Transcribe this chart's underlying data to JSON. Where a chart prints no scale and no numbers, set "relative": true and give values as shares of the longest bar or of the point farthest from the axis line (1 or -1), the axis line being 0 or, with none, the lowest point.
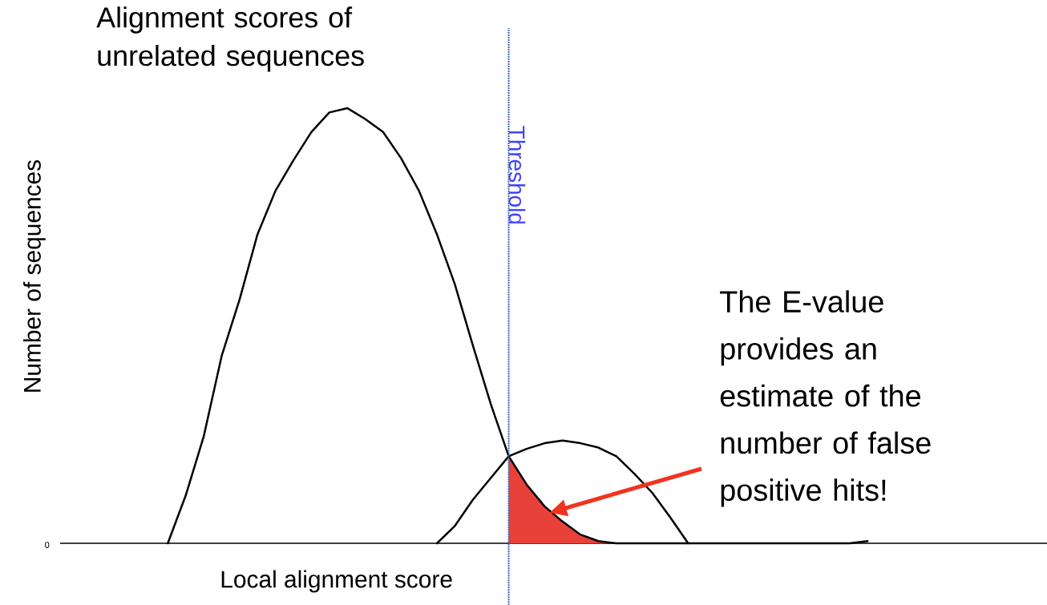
{
  "chart_data": {
    "type": "line",
    "relative": true,
    "xlabel": "Local alignment score",
    "ylabel": "Number of sequences",
    "categories": [
      null,
      null,
      null,
      null,
      null,
      null,
      null,
      null,
      null,
      null,
      null,
      null,
      null,
      null,
      null,
      null,
      null,
      null,
      null,
      null,
      null,
      null,
      null,
      null,
      null,
      null,
      null,
      null,
      null,
      null,
      null,
      null,
      null,
      null,
      null,
      null,
      null,
      null,
      null,
      null,
      null,
      null,
      null,
      null,
      null,
      null,
      null,
      null,
      null,
      null,
      null,
      null,
      null,
      null,
      null,
      null
    ],
    "series": [
      {
        "type": "area",
        "color": "#e8413a",
        "values": [
          null,
          null,
          null,
          null,
          null,
          null,
          null,
          null,
          null,
          null,
          null,
          null,
          null,
          null,
          null,
          null,
          null,
          null,
          null,
          null,
          null,
          null,
          null,
          null,
          null,
          0.2,
          0.135,
          0.085,
          0.05,
          0.02,
          0.005,
          0,
          null,
          null,
          null,
          null,
          null,
          null,
          null,
          null,
          null,
          null,
          null,
          null,
          null,
          null,
          null,
          null,
          null,
          null,
          null,
          null,
          null,
          null,
          null,
          null
        ]
      },
      {
        "color": "#000000",
        "values": [
          null,
          null,
          null,
          null,
          null,
          null,
          0,
          0.11,
          0.245,
          0.43,
          0.56,
          0.71,
          0.81,
          0.88,
          0.945,
          0.99,
          1,
          0.975,
          0.945,
          0.885,
          0.81,
          0.71,
          0.595,
          0.455,
          0.32,
          0.2,
          0.135,
          0.085,
          0.05,
          0.02,
          0.005,
          0,
          0,
          0,
          0,
          0,
          0,
          0,
          0,
          0,
          0,
          0,
          0,
          0,
          0,
          0.005,
          null,
          null,
          null,
          null,
          null,
          null,
          null,
          null,
          null,
          null
        ]
      },
      {
        "color": "#000000",
        "values": [
          null,
          null,
          null,
          null,
          null,
          null,
          null,
          null,
          null,
          null,
          null,
          null,
          null,
          null,
          null,
          null,
          null,
          null,
          null,
          null,
          null,
          0,
          0.04,
          0.1,
          0.15,
          0.2,
          0.217,
          0.23,
          0.236,
          0.23,
          0.22,
          0.2,
          0.16,
          0.116,
          0.06,
          0,
          null,
          null,
          null,
          null,
          null,
          null,
          null,
          null,
          null,
          null,
          null,
          null,
          null,
          null,
          null,
          null,
          null,
          null,
          null,
          null
        ]
      }
    ],
    "annotations": [
      "Alignment scores of unrelated sequences",
      "The E-value provides an estimate of the number of false positive hits!",
      "0",
      "Threshold"
    ]
  }
}
